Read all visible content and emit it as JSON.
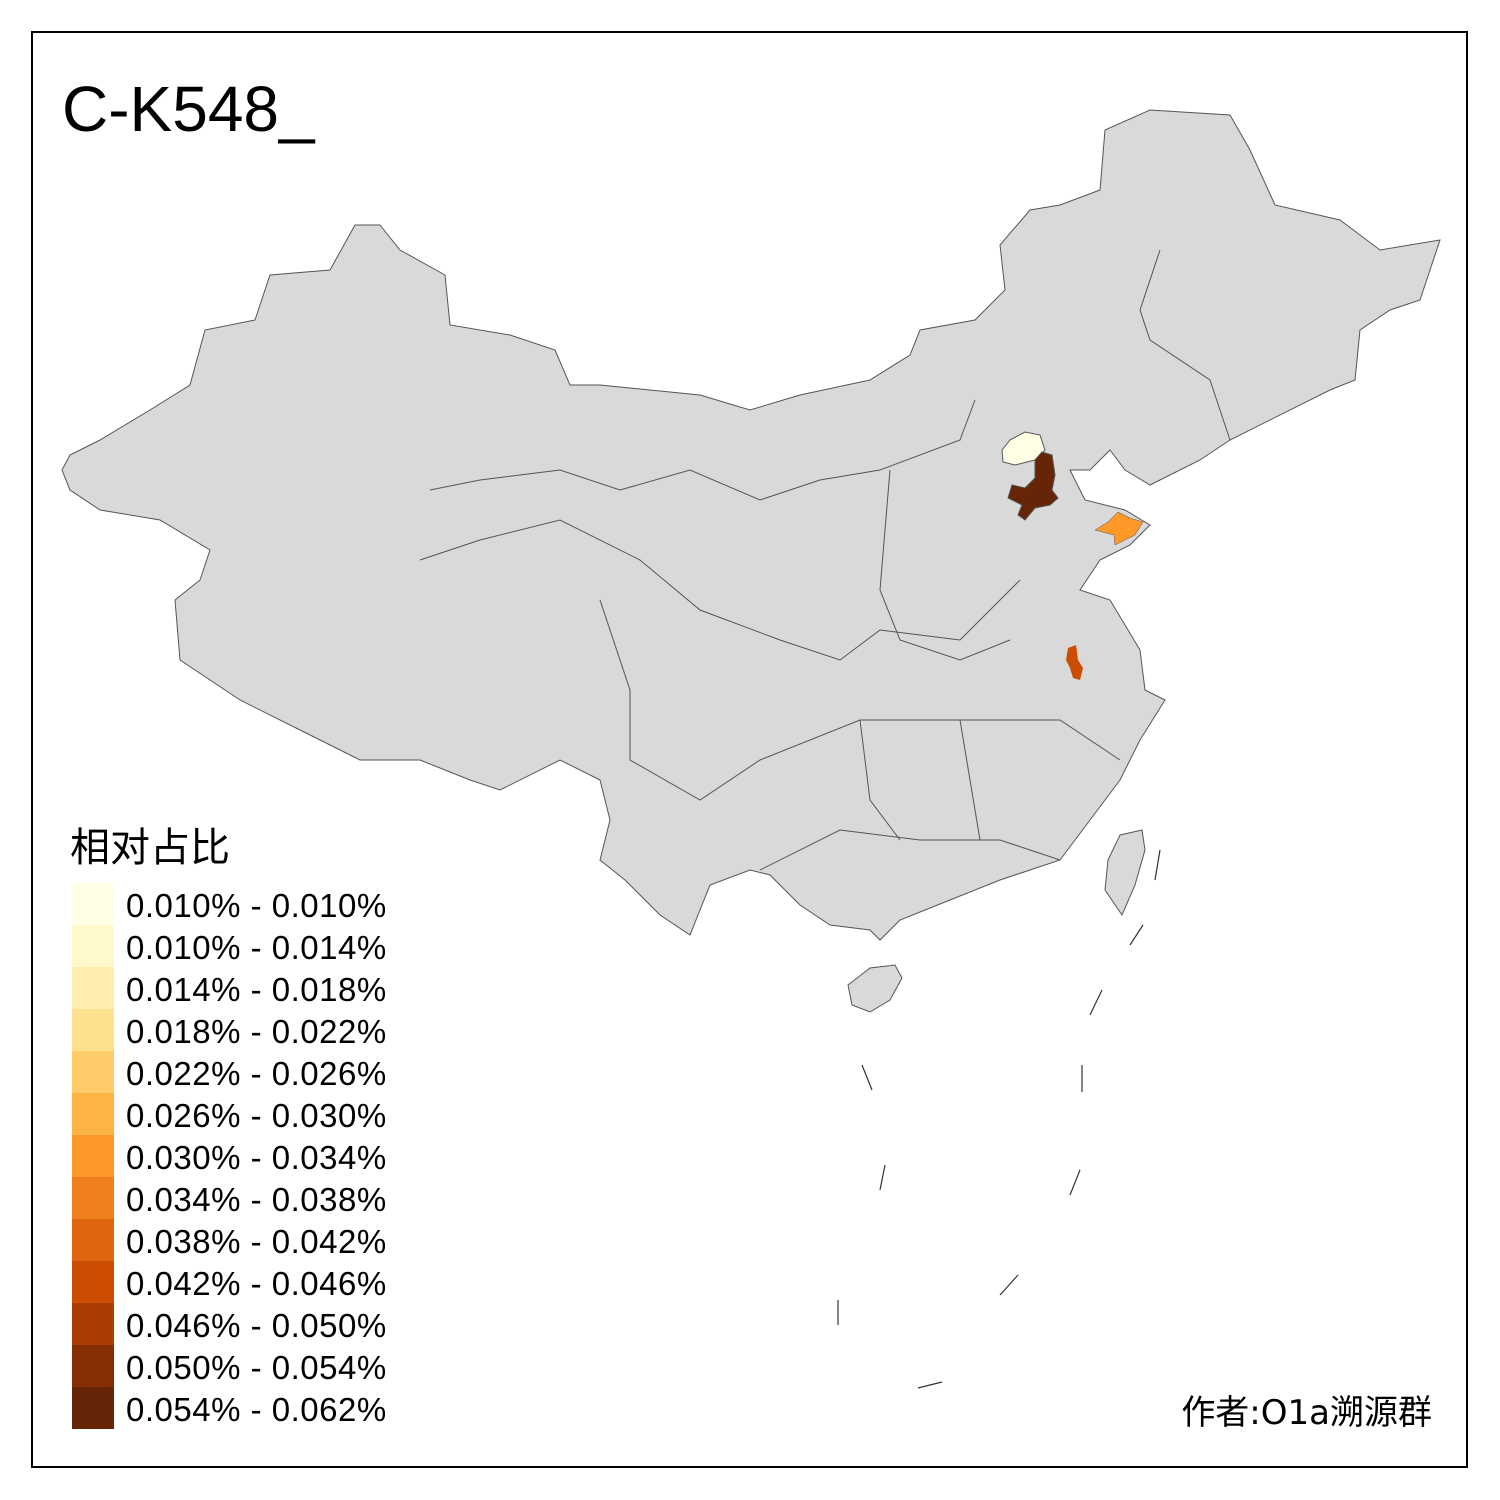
{
  "title": "C-K548_",
  "legend": {
    "title": "相对占比",
    "items": [
      {
        "label": "0.010% - 0.010%",
        "color": "#FFFFE5"
      },
      {
        "label": "0.010% - 0.014%",
        "color": "#FFF8CA"
      },
      {
        "label": "0.014% - 0.018%",
        "color": "#FEEDAE"
      },
      {
        "label": "0.018% - 0.022%",
        "color": "#FEE18F"
      },
      {
        "label": "0.022% - 0.026%",
        "color": "#FECD69"
      },
      {
        "label": "0.026% - 0.030%",
        "color": "#FEB444"
      },
      {
        "label": "0.030% - 0.034%",
        "color": "#FE9929"
      },
      {
        "label": "0.034% - 0.038%",
        "color": "#F0801E"
      },
      {
        "label": "0.038% - 0.042%",
        "color": "#DF6511"
      },
      {
        "label": "0.042% - 0.046%",
        "color": "#CC4C02"
      },
      {
        "label": "0.046% - 0.050%",
        "color": "#A93D03"
      },
      {
        "label": "0.050% - 0.054%",
        "color": "#862F05"
      },
      {
        "label": "0.054% - 0.062%",
        "color": "#662506"
      }
    ]
  },
  "map": {
    "base_color": "#D9D9D9",
    "border_color": "#555555",
    "highlighted_regions": [
      {
        "region": "Beijing",
        "legend_bin": 0
      },
      {
        "region": "Tianjin",
        "legend_bin": 12
      },
      {
        "region": "Yantai",
        "legend_bin": 6
      },
      {
        "region": "Anhui (Bengbu area)",
        "legend_bin": 9
      }
    ]
  },
  "author": "作者:O1a溯源群"
}
